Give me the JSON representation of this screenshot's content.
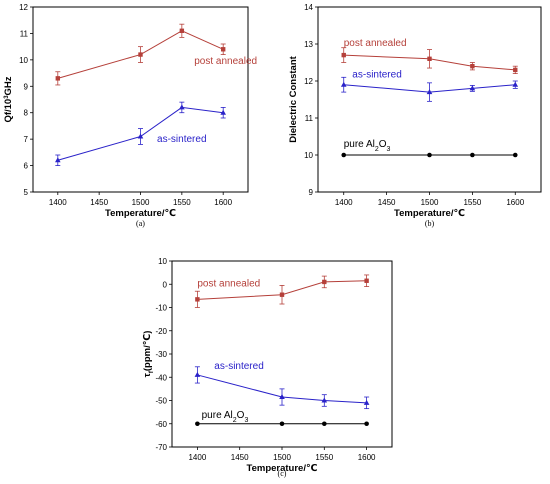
{
  "chart_data": [
    {
      "type": "line",
      "panel_label": "(a)",
      "x": [
        1400,
        1500,
        1550,
        1600
      ],
      "xlim": [
        1370,
        1630
      ],
      "xticks": [
        1400,
        1450,
        1500,
        1550,
        1600
      ],
      "xlabel": "Temperature/℃",
      "ylim": [
        5,
        12
      ],
      "yticks": [
        5,
        6,
        7,
        8,
        9,
        10,
        11,
        12
      ],
      "ylabel_main": "Qf/10",
      "ylabel_sup": "3",
      "ylabel_tail": "GHz",
      "series": [
        {
          "name": "post annealed",
          "values": [
            9.3,
            10.2,
            11.1,
            10.4
          ],
          "err": [
            0.25,
            0.3,
            0.25,
            0.2
          ],
          "color": "#b5403a",
          "marker": "square",
          "label_pos": [
            1565,
            9.85
          ]
        },
        {
          "name": "as-sintered",
          "values": [
            6.2,
            7.1,
            8.2,
            8.0
          ],
          "err": [
            0.2,
            0.3,
            0.2,
            0.2
          ],
          "color": "#2a22c9",
          "marker": "triangle",
          "label_pos": [
            1520,
            6.9
          ]
        }
      ]
    },
    {
      "type": "line",
      "panel_label": "(b)",
      "x": [
        1400,
        1500,
        1550,
        1600
      ],
      "xlim": [
        1370,
        1630
      ],
      "xticks": [
        1400,
        1450,
        1500,
        1550,
        1600
      ],
      "xlabel": "Temperature/℃",
      "ylim": [
        9,
        14
      ],
      "yticks": [
        9,
        10,
        11,
        12,
        13,
        14
      ],
      "ylabel_main": "Dielectric Constant",
      "series": [
        {
          "name": "post annealed",
          "values": [
            12.7,
            12.6,
            12.4,
            12.3
          ],
          "err": [
            0.2,
            0.25,
            0.1,
            0.1
          ],
          "color": "#b5403a",
          "marker": "square",
          "label_pos": [
            1400,
            12.95
          ]
        },
        {
          "name": "as-sintered",
          "values": [
            11.9,
            11.7,
            11.8,
            11.9
          ],
          "err": [
            0.2,
            0.25,
            0.08,
            0.1
          ],
          "color": "#2a22c9",
          "marker": "triangle",
          "label_pos": [
            1410,
            12.1
          ]
        },
        {
          "name": "pure Al",
          "name_sub": "2",
          "name_tail": "O",
          "name_sub2": "3",
          "values": [
            10,
            10,
            10,
            10
          ],
          "err": [
            0,
            0,
            0,
            0
          ],
          "color": "#000000",
          "marker": "circle",
          "label_pos": [
            1400,
            10.22
          ]
        }
      ]
    },
    {
      "type": "line",
      "panel_label": "(c)",
      "x": [
        1400,
        1500,
        1550,
        1600
      ],
      "xlim": [
        1370,
        1630
      ],
      "xticks": [
        1400,
        1450,
        1500,
        1550,
        1600
      ],
      "xlabel": "Temperature/℃",
      "ylim": [
        -70,
        10
      ],
      "yticks": [
        -70,
        -60,
        -50,
        -40,
        -30,
        -20,
        -10,
        0,
        10
      ],
      "ylabel_main": "τ",
      "ylabel_sub": "f",
      "ylabel_tail": "(ppm/℃)",
      "series": [
        {
          "name": "post annealed",
          "values": [
            -6.5,
            -4.5,
            1.0,
            1.5
          ],
          "err": [
            3.5,
            4.0,
            2.5,
            2.5
          ],
          "color": "#b5403a",
          "marker": "square",
          "label_pos": [
            1400,
            -1.0
          ]
        },
        {
          "name": "as-sintered",
          "values": [
            -39.0,
            -48.5,
            -50.0,
            -51.0
          ],
          "err": [
            3.5,
            3.5,
            2.5,
            2.5
          ],
          "color": "#2a22c9",
          "marker": "triangle",
          "label_pos": [
            1420,
            -36.5
          ]
        },
        {
          "name": "pure Al",
          "name_sub": "2",
          "name_tail": "O",
          "name_sub2": "3",
          "values": [
            -60,
            -60,
            -60,
            -60
          ],
          "err": [
            0,
            0,
            0,
            0
          ],
          "color": "#000000",
          "marker": "circle",
          "label_pos": [
            1405,
            -57.5
          ]
        }
      ]
    }
  ]
}
